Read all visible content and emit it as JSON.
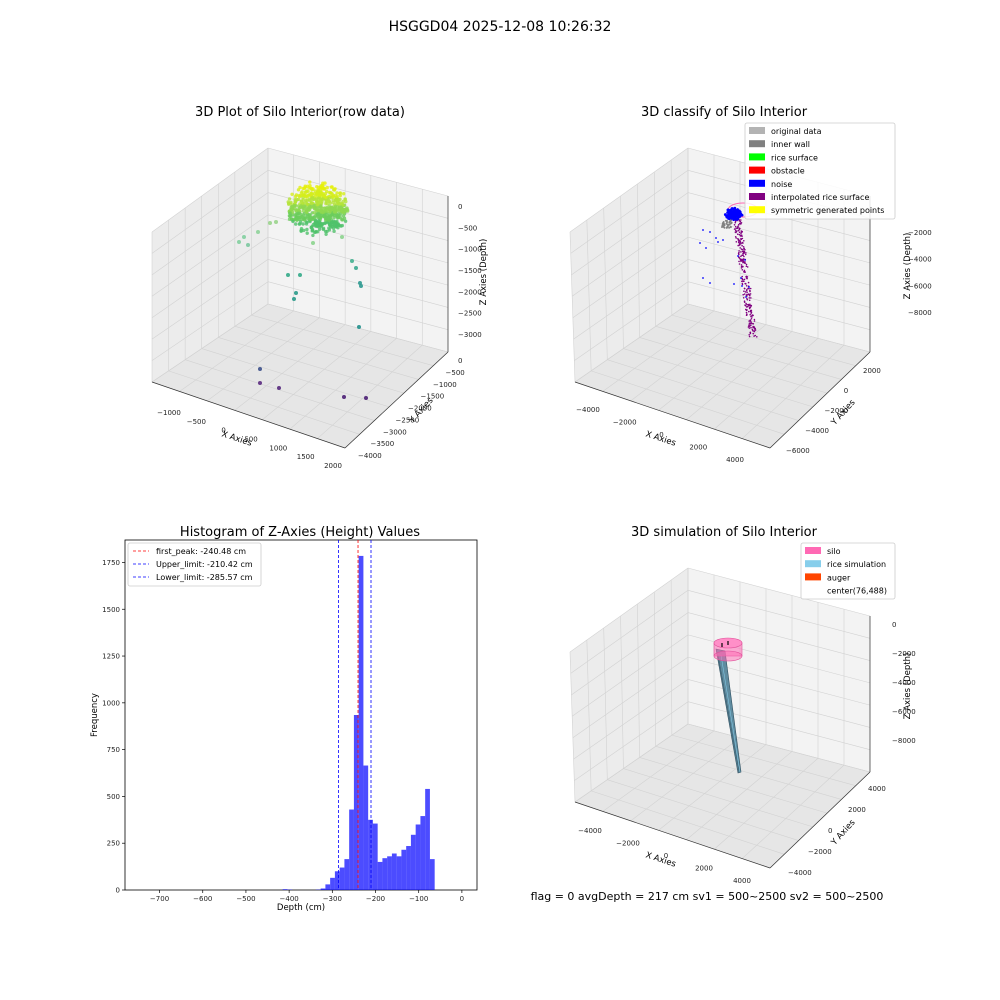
{
  "figure": {
    "title": "HSGGD04 2025-12-08 10:26:32",
    "footer": "flag = 0     avgDepth = 217 cm  sv1 = 500~2500  sv2 = 500~2500"
  },
  "plots": {
    "raw": {
      "title": "3D Plot of Silo Interior(row data)",
      "xlabel": "X Axies",
      "ylabel": "Y Axies",
      "zlabel": "Z Axies (Depth)",
      "xticks": [
        "−1000",
        "−500",
        "0",
        "500",
        "1000",
        "1500",
        "2000"
      ],
      "yticks": [
        "0",
        "−500",
        "−1000",
        "−1500",
        "−2000",
        "−2500",
        "−3000",
        "−3500",
        "−4000"
      ],
      "zticks": [
        "0",
        "−500",
        "−1000",
        "−1500",
        "−2000",
        "−2500",
        "−3000"
      ]
    },
    "classify": {
      "title": "3D classify of Silo Interior",
      "xlabel": "X Axies",
      "ylabel": "Y Axies",
      "zlabel": "Z Axies (Depth)",
      "xticks": [
        "−4000",
        "−2000",
        "0",
        "2000",
        "4000"
      ],
      "yticks": [
        "2000",
        "0",
        "−2000",
        "−4000",
        "−6000"
      ],
      "zticks": [
        "−2000",
        "−4000",
        "−6000",
        "−8000"
      ],
      "legend": [
        {
          "label": "original data",
          "color": "#b3b3b3"
        },
        {
          "label": "inner wall",
          "color": "#808080"
        },
        {
          "label": "rice surface",
          "color": "#00ff00"
        },
        {
          "label": "obstacle",
          "color": "#ff0000"
        },
        {
          "label": "noise",
          "color": "#0000ff"
        },
        {
          "label": "interpolated rice surface",
          "color": "#800080"
        },
        {
          "label": "symmetric generated points",
          "color": "#ffff00"
        }
      ]
    },
    "simulation": {
      "title": "3D simulation of Silo Interior",
      "xlabel": "X Axies",
      "ylabel": "Y Axies",
      "zlabel": "Z Axies (Depth)",
      "xticks": [
        "−4000",
        "−2000",
        "0",
        "2000",
        "4000"
      ],
      "yticks": [
        "4000",
        "2000",
        "0",
        "−2000",
        "−4000"
      ],
      "zticks": [
        "0",
        "−2000",
        "−4000",
        "−6000",
        "−8000"
      ],
      "legend": [
        {
          "label": "silo",
          "color": "#ff69b4"
        },
        {
          "label": "rice simulation",
          "color": "#87ceeb"
        },
        {
          "label": "auger",
          "color": "#ff4500"
        },
        {
          "label": "center(76,488)",
          "color": "#ffffff"
        }
      ]
    }
  },
  "chart_data": {
    "type": "bar",
    "title": "Histogram of Z-Axies (Height) Values",
    "xlabel": "Depth (cm)",
    "ylabel": "Frequency",
    "xlim": [
      -780,
      35
    ],
    "ylim": [
      0,
      1870
    ],
    "xticks": [
      -700,
      -600,
      -500,
      -400,
      -300,
      -200,
      -100,
      0
    ],
    "yticks": [
      0,
      250,
      500,
      750,
      1000,
      1250,
      1500,
      1750
    ],
    "bar_color": "#0000ff",
    "bin_width": 11,
    "bins": [
      {
        "x": -415,
        "v": 4
      },
      {
        "x": -404,
        "v": 2
      },
      {
        "x": -338,
        "v": 2
      },
      {
        "x": -327,
        "v": 8
      },
      {
        "x": -316,
        "v": 30
      },
      {
        "x": -305,
        "v": 65
      },
      {
        "x": -294,
        "v": 100
      },
      {
        "x": -283,
        "v": 120
      },
      {
        "x": -272,
        "v": 165
      },
      {
        "x": -261,
        "v": 430
      },
      {
        "x": -250,
        "v": 935
      },
      {
        "x": -239,
        "v": 1785
      },
      {
        "x": -228,
        "v": 665
      },
      {
        "x": -217,
        "v": 375
      },
      {
        "x": -206,
        "v": 355
      },
      {
        "x": -195,
        "v": 150
      },
      {
        "x": -184,
        "v": 170
      },
      {
        "x": -173,
        "v": 180
      },
      {
        "x": -162,
        "v": 195
      },
      {
        "x": -151,
        "v": 180
      },
      {
        "x": -140,
        "v": 215
      },
      {
        "x": -129,
        "v": 235
      },
      {
        "x": -118,
        "v": 295
      },
      {
        "x": -107,
        "v": 350
      },
      {
        "x": -96,
        "v": 395
      },
      {
        "x": -85,
        "v": 540
      },
      {
        "x": -74,
        "v": 165
      }
    ],
    "vlines": [
      {
        "label": "first_peak: -240.48 cm",
        "x": -240.48,
        "color": "#ff0000"
      },
      {
        "label": "Upper_limit: -210.42 cm",
        "x": -210.42,
        "color": "#0000ff"
      },
      {
        "label": "Lower_limit: -285.57 cm",
        "x": -285.57,
        "color": "#0000ff"
      }
    ]
  }
}
